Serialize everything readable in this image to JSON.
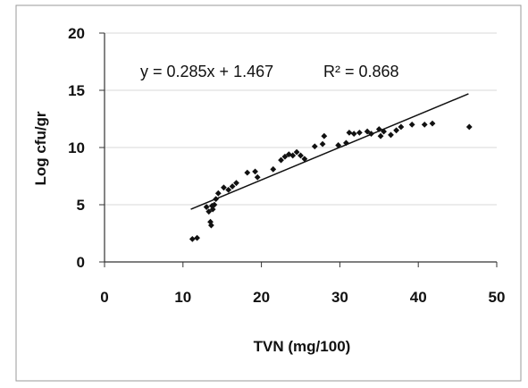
{
  "chart_data": {
    "type": "scatter",
    "title": "",
    "xlabel": "TVN (mg/100)",
    "ylabel": "Log cfu/gr",
    "xlim": [
      0,
      50
    ],
    "ylim": [
      0,
      20
    ],
    "xticks": [
      "0",
      "10",
      "20",
      "30",
      "40",
      "50"
    ],
    "yticks": [
      "0",
      "5",
      "10",
      "15",
      "20"
    ],
    "grid": "horizontal",
    "legend": "none",
    "series": [
      {
        "x": [
          11.2,
          11.8,
          13.0,
          13.3,
          13.5,
          13.6,
          13.7,
          13.8,
          14.0,
          14.2,
          14.5,
          15.2,
          15.8,
          16.3,
          16.8,
          18.2,
          19.2,
          19.5,
          21.5,
          22.5,
          23.0,
          23.5,
          24.0,
          24.5,
          25.0,
          25.5,
          26.8,
          27.8,
          28.0,
          29.8,
          30.8,
          31.2,
          31.8,
          32.5,
          33.5,
          34.0,
          35.0,
          35.2,
          35.6,
          36.5,
          37.2,
          37.8,
          39.2,
          40.8,
          41.8,
          46.5
        ],
        "y": [
          2.0,
          2.1,
          4.8,
          4.4,
          3.5,
          3.2,
          4.9,
          4.6,
          5.0,
          5.5,
          6.0,
          6.5,
          6.3,
          6.6,
          6.9,
          7.8,
          7.9,
          7.4,
          8.1,
          8.9,
          9.2,
          9.4,
          9.3,
          9.6,
          9.3,
          9.0,
          10.1,
          10.3,
          11.0,
          10.2,
          10.4,
          11.3,
          11.2,
          11.3,
          11.4,
          11.2,
          11.6,
          11.0,
          11.4,
          11.1,
          11.5,
          11.8,
          12.0,
          12.0,
          12.1,
          11.8
        ],
        "color": "#111111"
      }
    ],
    "trendline": {
      "slope": 0.285,
      "intercept": 1.467,
      "x_range": [
        11,
        46.4
      ],
      "color": "#111111"
    },
    "annotations": {
      "equation": "y = 0.285x + 1.467",
      "r_squared": "R² = 0.868"
    }
  }
}
